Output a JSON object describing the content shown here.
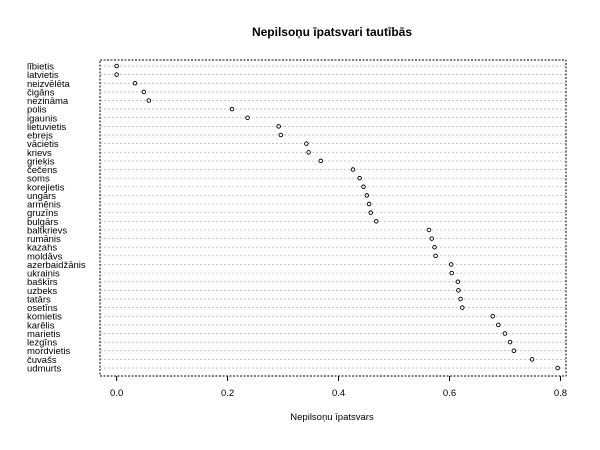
{
  "chart_data": {
    "type": "scatter",
    "title": "Nepilsoņu īpatsvari tautībās",
    "xlabel": "Nepilsoņu īpatsvars",
    "ylabel": "",
    "xlim": [
      -0.03,
      0.81
    ],
    "xticks": [
      0.0,
      0.2,
      0.4,
      0.6,
      0.8
    ],
    "xtick_labels": [
      "0.0",
      "0.2",
      "0.4",
      "0.6",
      "0.8"
    ],
    "grid": true,
    "categories": [
      "lībietis",
      "latvietis",
      "neizvēlēta",
      "čigāns",
      "nezināma",
      "polis",
      "igaunis",
      "lietuvietis",
      "ebrejs",
      "vācietis",
      "krievs",
      "grieķis",
      "čečens",
      "soms",
      "korejietis",
      "ungārs",
      "armēnis",
      "gruzīns",
      "bulgārs",
      "baltkrievs",
      "rumānis",
      "kazahs",
      "moldāvs",
      "azerbaidžānis",
      "ukrainis",
      "baškīrs",
      "uzbeks",
      "tatārs",
      "osetīns",
      "komietis",
      "karēlis",
      "marietis",
      "lezgīns",
      "mordvietis",
      "čuvašs",
      "udmurts"
    ],
    "values": [
      0.0,
      0.0,
      0.033,
      0.049,
      0.058,
      0.208,
      0.236,
      0.292,
      0.296,
      0.342,
      0.346,
      0.368,
      0.426,
      0.438,
      0.445,
      0.451,
      0.455,
      0.458,
      0.468,
      0.563,
      0.568,
      0.573,
      0.575,
      0.603,
      0.604,
      0.615,
      0.616,
      0.62,
      0.623,
      0.678,
      0.688,
      0.7,
      0.709,
      0.716,
      0.749,
      0.795
    ]
  }
}
